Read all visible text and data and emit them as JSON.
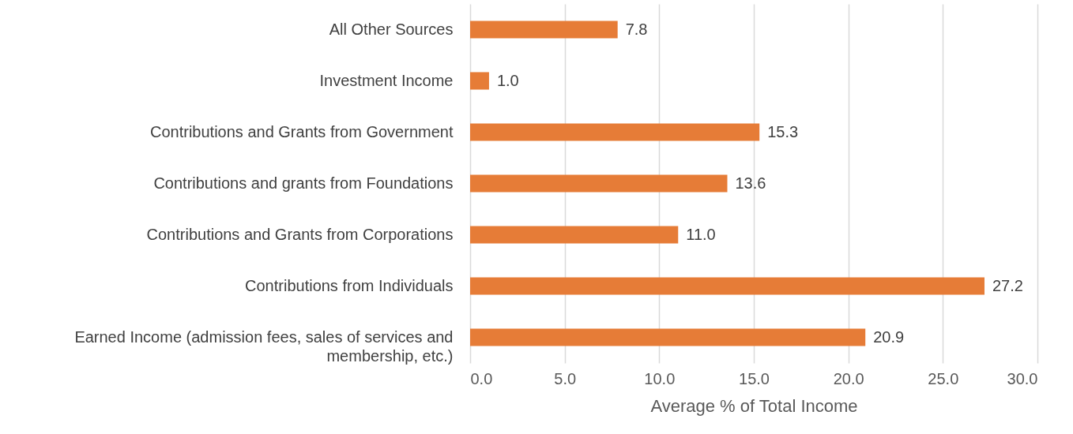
{
  "chart_data": {
    "type": "bar",
    "orientation": "horizontal",
    "xlabel": "Average % of Total Income",
    "categories": [
      "All Other Sources",
      "Investment Income",
      "Contributions and Grants from Government",
      "Contributions and grants from Foundations",
      "Contributions and Grants from Corporations",
      "Contributions from Individuals",
      "Earned Income (admission fees, sales of services and membership, etc.)"
    ],
    "values": [
      7.8,
      1.0,
      15.3,
      13.6,
      11.0,
      27.2,
      20.9
    ],
    "value_labels": [
      "7.8",
      "1.0",
      "15.3",
      "13.6",
      "11.0",
      "27.2",
      "20.9"
    ],
    "color": "#e67c37",
    "xlim": [
      0,
      30
    ],
    "xticks": [
      {
        "value": 0,
        "label": "0.0"
      },
      {
        "value": 5,
        "label": "5.0"
      },
      {
        "value": 10,
        "label": "10.0"
      },
      {
        "value": 15,
        "label": "15.0"
      },
      {
        "value": 20,
        "label": "20.0"
      },
      {
        "value": 25,
        "label": "25.0"
      },
      {
        "value": 30,
        "label": "30.0"
      }
    ],
    "grid": "x"
  }
}
